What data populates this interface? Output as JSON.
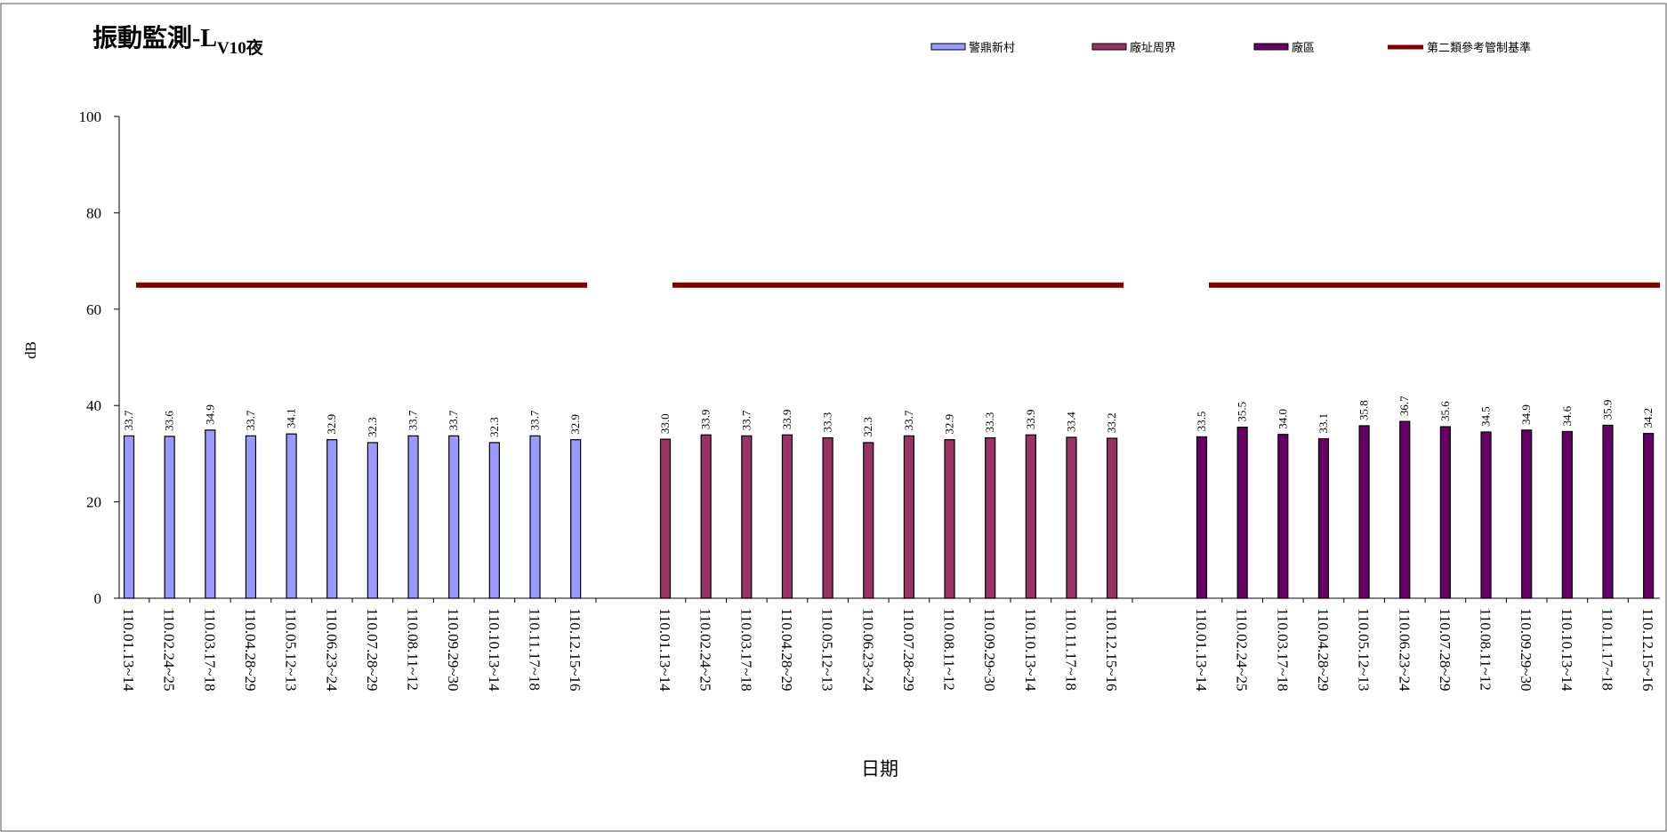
{
  "chart_data": {
    "type": "bar",
    "title": "振動監測-L",
    "title_subscript": "V10夜",
    "y_label": "dB",
    "x_label": "日期",
    "categories": [
      "110.01.13~14",
      "110.02.24~25",
      "110.03.17~18",
      "110.04.28~29",
      "110.05.12~13",
      "110.06.23~24",
      "110.07.28~29",
      "110.08.11~12",
      "110.09.29~30",
      "110.10.13~14",
      "110.11.17~18",
      "110.12.15~16"
    ],
    "series": [
      {
        "name": "警鼎新村",
        "color": "#9999ff",
        "values": [
          33.7,
          33.6,
          34.9,
          33.7,
          34.1,
          32.9,
          32.3,
          33.7,
          33.7,
          32.3,
          33.7,
          32.9
        ],
        "value_labels": [
          "33.7",
          "33.6",
          "34.9",
          "33.7",
          "34.1",
          "32.9",
          "32.3",
          "33.7",
          "33.7",
          "32.3",
          "33.7",
          "32.9"
        ]
      },
      {
        "name": "廠址周界",
        "color": "#993366",
        "values": [
          33.0,
          33.9,
          33.7,
          33.9,
          33.3,
          32.3,
          33.7,
          32.9,
          33.3,
          33.9,
          33.4,
          33.2
        ],
        "value_labels": [
          "33.0",
          "33.9",
          "33.7",
          "33.9",
          "33.3",
          "32.3",
          "33.7",
          "32.9",
          "33.3",
          "33.9",
          "33.4",
          "33.2"
        ]
      },
      {
        "name": "廠區",
        "color": "#660066",
        "values": [
          33.5,
          35.5,
          34.0,
          33.1,
          35.8,
          36.7,
          35.6,
          34.5,
          34.9,
          34.6,
          35.9,
          34.2
        ],
        "value_labels": [
          "33.5",
          "35.5",
          "34.0",
          "33.1",
          "35.8",
          "36.7",
          "35.6",
          "34.5",
          "34.9",
          "34.6",
          "35.9",
          "34.2"
        ]
      }
    ],
    "reference": {
      "name": "第二類參考管制基準",
      "value": 65,
      "color": "#800000"
    },
    "ylim": [
      0,
      100
    ],
    "yticks": [
      0,
      20,
      40,
      60,
      80,
      100
    ]
  }
}
